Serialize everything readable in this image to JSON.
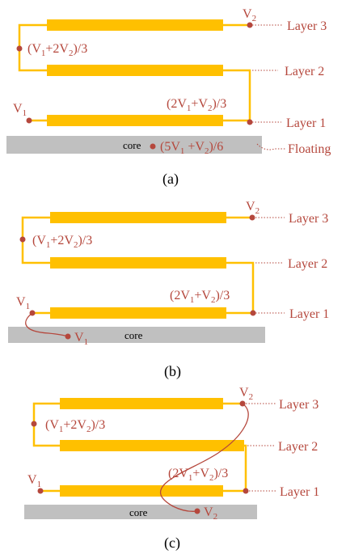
{
  "colors": {
    "trace": "#ffc000",
    "plate": "#ffc000",
    "label": "#b5473c",
    "core": "#c0c0c0",
    "dot": "#b5473c"
  },
  "layers": {
    "layer3": "Layer 3",
    "layer2": "Layer 2",
    "layer1": "Layer 1"
  },
  "core_label": "core",
  "floating_label": "Floating",
  "voltages": {
    "v1": {
      "base": "V",
      "sub": "1"
    },
    "v2": {
      "base": "V",
      "sub": "2"
    },
    "mid_upper": {
      "p1": "(V",
      "s1": "1",
      "p2": "+2V",
      "s2": "2",
      "p3": ")/3"
    },
    "mid_lower": {
      "p1": "(2V",
      "s1": "1",
      "p2": "+V",
      "s2": "2",
      "p3": ")/3"
    },
    "floating_core": {
      "p1": "(5V",
      "s1": "1",
      "p2": " +V",
      "s2": "2",
      "p3": ")/6"
    }
  },
  "captions": {
    "a": "(a)",
    "b": "(b)",
    "c": "(c)"
  }
}
